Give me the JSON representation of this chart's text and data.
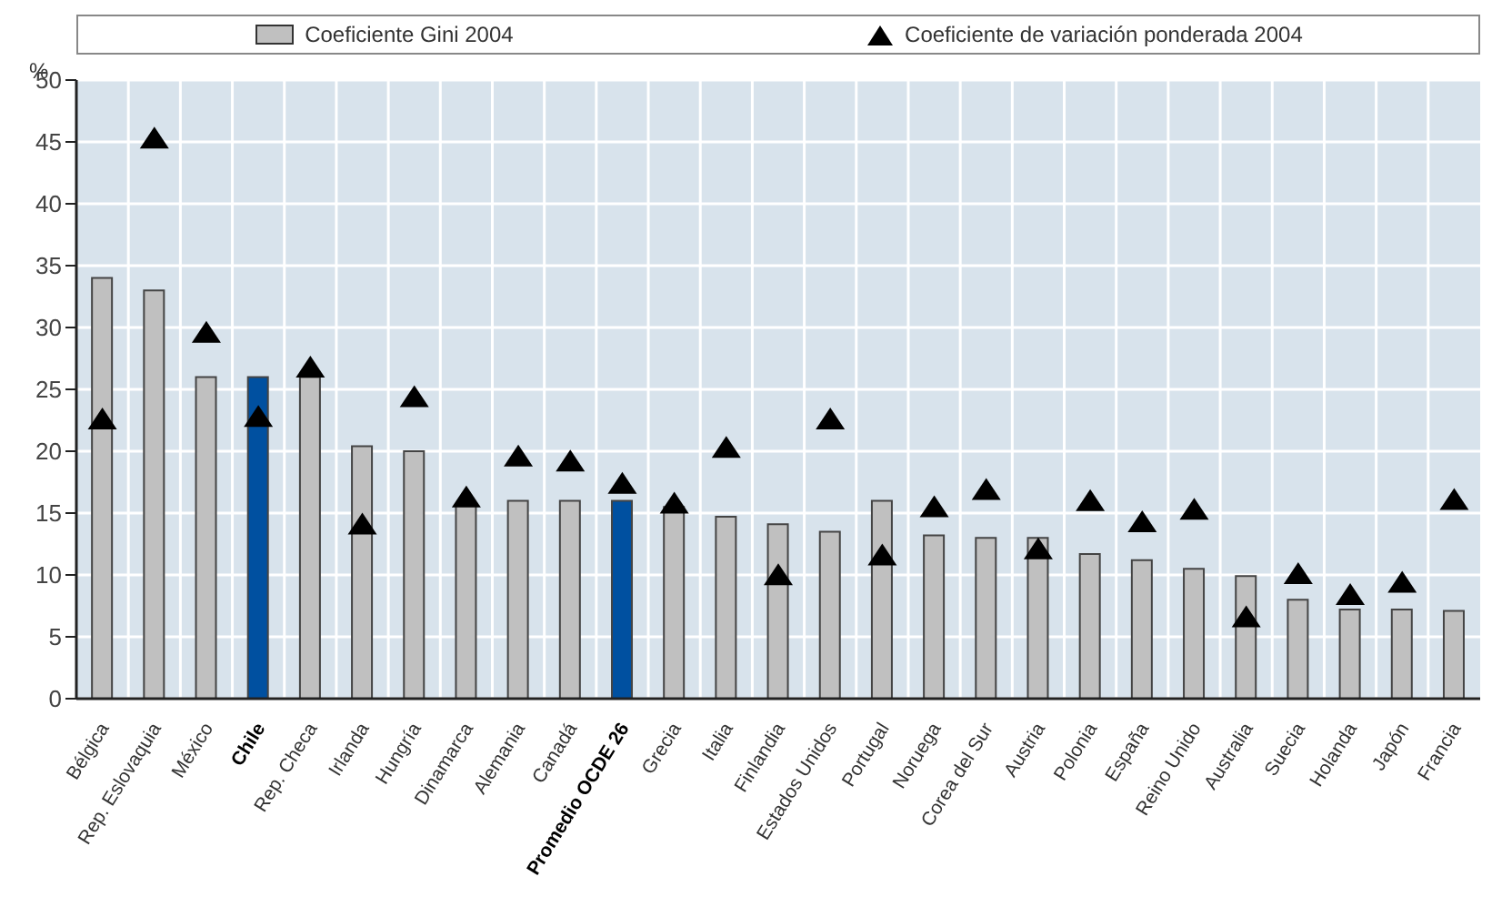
{
  "chart_data": {
    "type": "bar",
    "ylabel": "%",
    "categories": [
      "Bélgica",
      "Rep. Eslovaquia",
      "México",
      "Chile",
      "Rep. Checa",
      "Irlanda",
      "Hungría",
      "Dinamarca",
      "Alemania",
      "Canadá",
      "Promedio OCDE 26",
      "Grecia",
      "Italia",
      "Finlandia",
      "Estados Unidos",
      "Portugal",
      "Noruega",
      "Corea del Sur",
      "Austria",
      "Polonia",
      "España",
      "Reino Unido",
      "Australia",
      "Suecia",
      "Holanda",
      "Japón",
      "Francia"
    ],
    "series": [
      {
        "name": "Coeficiente Gini 2004",
        "color": "#c0c0c0",
        "colors": [
          "#c0c0c0",
          "#c0c0c0",
          "#c0c0c0",
          "#0050a0",
          "#c0c0c0",
          "#c0c0c0",
          "#c0c0c0",
          "#c0c0c0",
          "#c0c0c0",
          "#c0c0c0",
          "#0050a0",
          "#c0c0c0",
          "#c0c0c0",
          "#c0c0c0",
          "#c0c0c0",
          "#c0c0c0",
          "#c0c0c0",
          "#c0c0c0",
          "#c0c0c0",
          "#c0c0c0",
          "#c0c0c0",
          "#c0c0c0",
          "#c0c0c0",
          "#c0c0c0",
          "#c0c0c0",
          "#c0c0c0",
          "#c0c0c0"
        ],
        "values": [
          34,
          33,
          26,
          26,
          26,
          20.4,
          20,
          15.7,
          16,
          16,
          16,
          15.5,
          14.7,
          14.1,
          13.5,
          16,
          13.2,
          13,
          13,
          11.7,
          11.2,
          10.5,
          9.9,
          8,
          7.2,
          7.2,
          7.1
        ]
      },
      {
        "name": "Coeficiente de variación ponderada 2004",
        "type": "scatter",
        "marker": "triangle",
        "color": "#000000",
        "values": [
          22.5,
          45.2,
          29.5,
          22.7,
          26.7,
          14,
          24.3,
          16.2,
          19.5,
          19.1,
          17.3,
          15.7,
          20.2,
          9.9,
          22.5,
          11.5,
          15.4,
          16.8,
          12,
          15.9,
          14.2,
          15.2,
          6.5,
          10,
          8.3,
          9.3,
          16
        ]
      }
    ],
    "ylim": [
      0,
      50
    ],
    "yticks": [
      0,
      5,
      10,
      15,
      20,
      25,
      30,
      35,
      40,
      45,
      50
    ],
    "grid": true,
    "legend": "top"
  }
}
